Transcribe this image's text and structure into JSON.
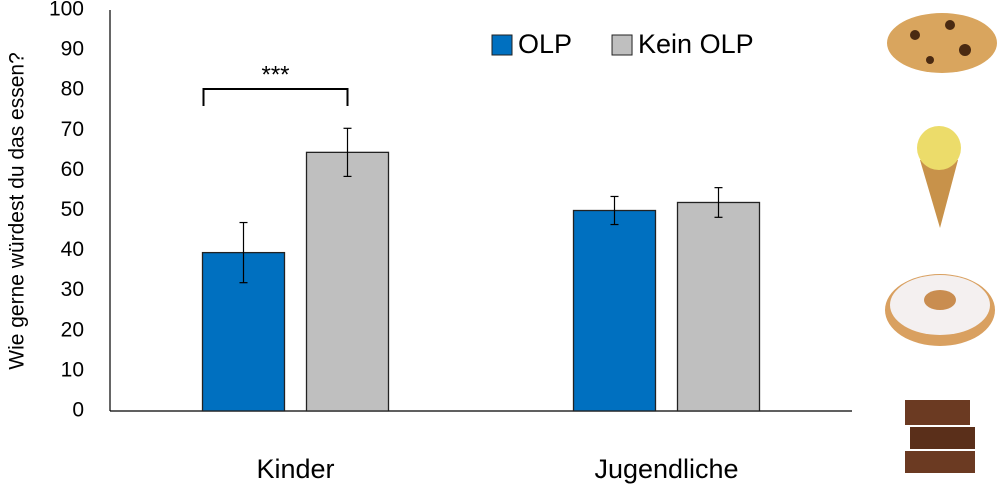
{
  "chart_data": {
    "type": "bar",
    "ylabel": "Wie gerne würdest du das essen?",
    "categories": [
      "Kinder",
      "Jugendliche"
    ],
    "series": [
      {
        "name": "OLP",
        "color": "#0070c0",
        "values": [
          39.5,
          50
        ],
        "errors": [
          7.5,
          3.5
        ]
      },
      {
        "name": "Kein OLP",
        "color": "#bfbfbf",
        "values": [
          64.5,
          52
        ],
        "errors": [
          6,
          3.7
        ]
      }
    ],
    "annotations": [
      {
        "text": "***"
      }
    ],
    "ylim": [
      0,
      100
    ],
    "yticks": [
      0,
      10,
      20,
      30,
      40,
      50,
      60,
      70,
      80,
      90,
      100
    ],
    "grid": false,
    "legend": "top"
  }
}
